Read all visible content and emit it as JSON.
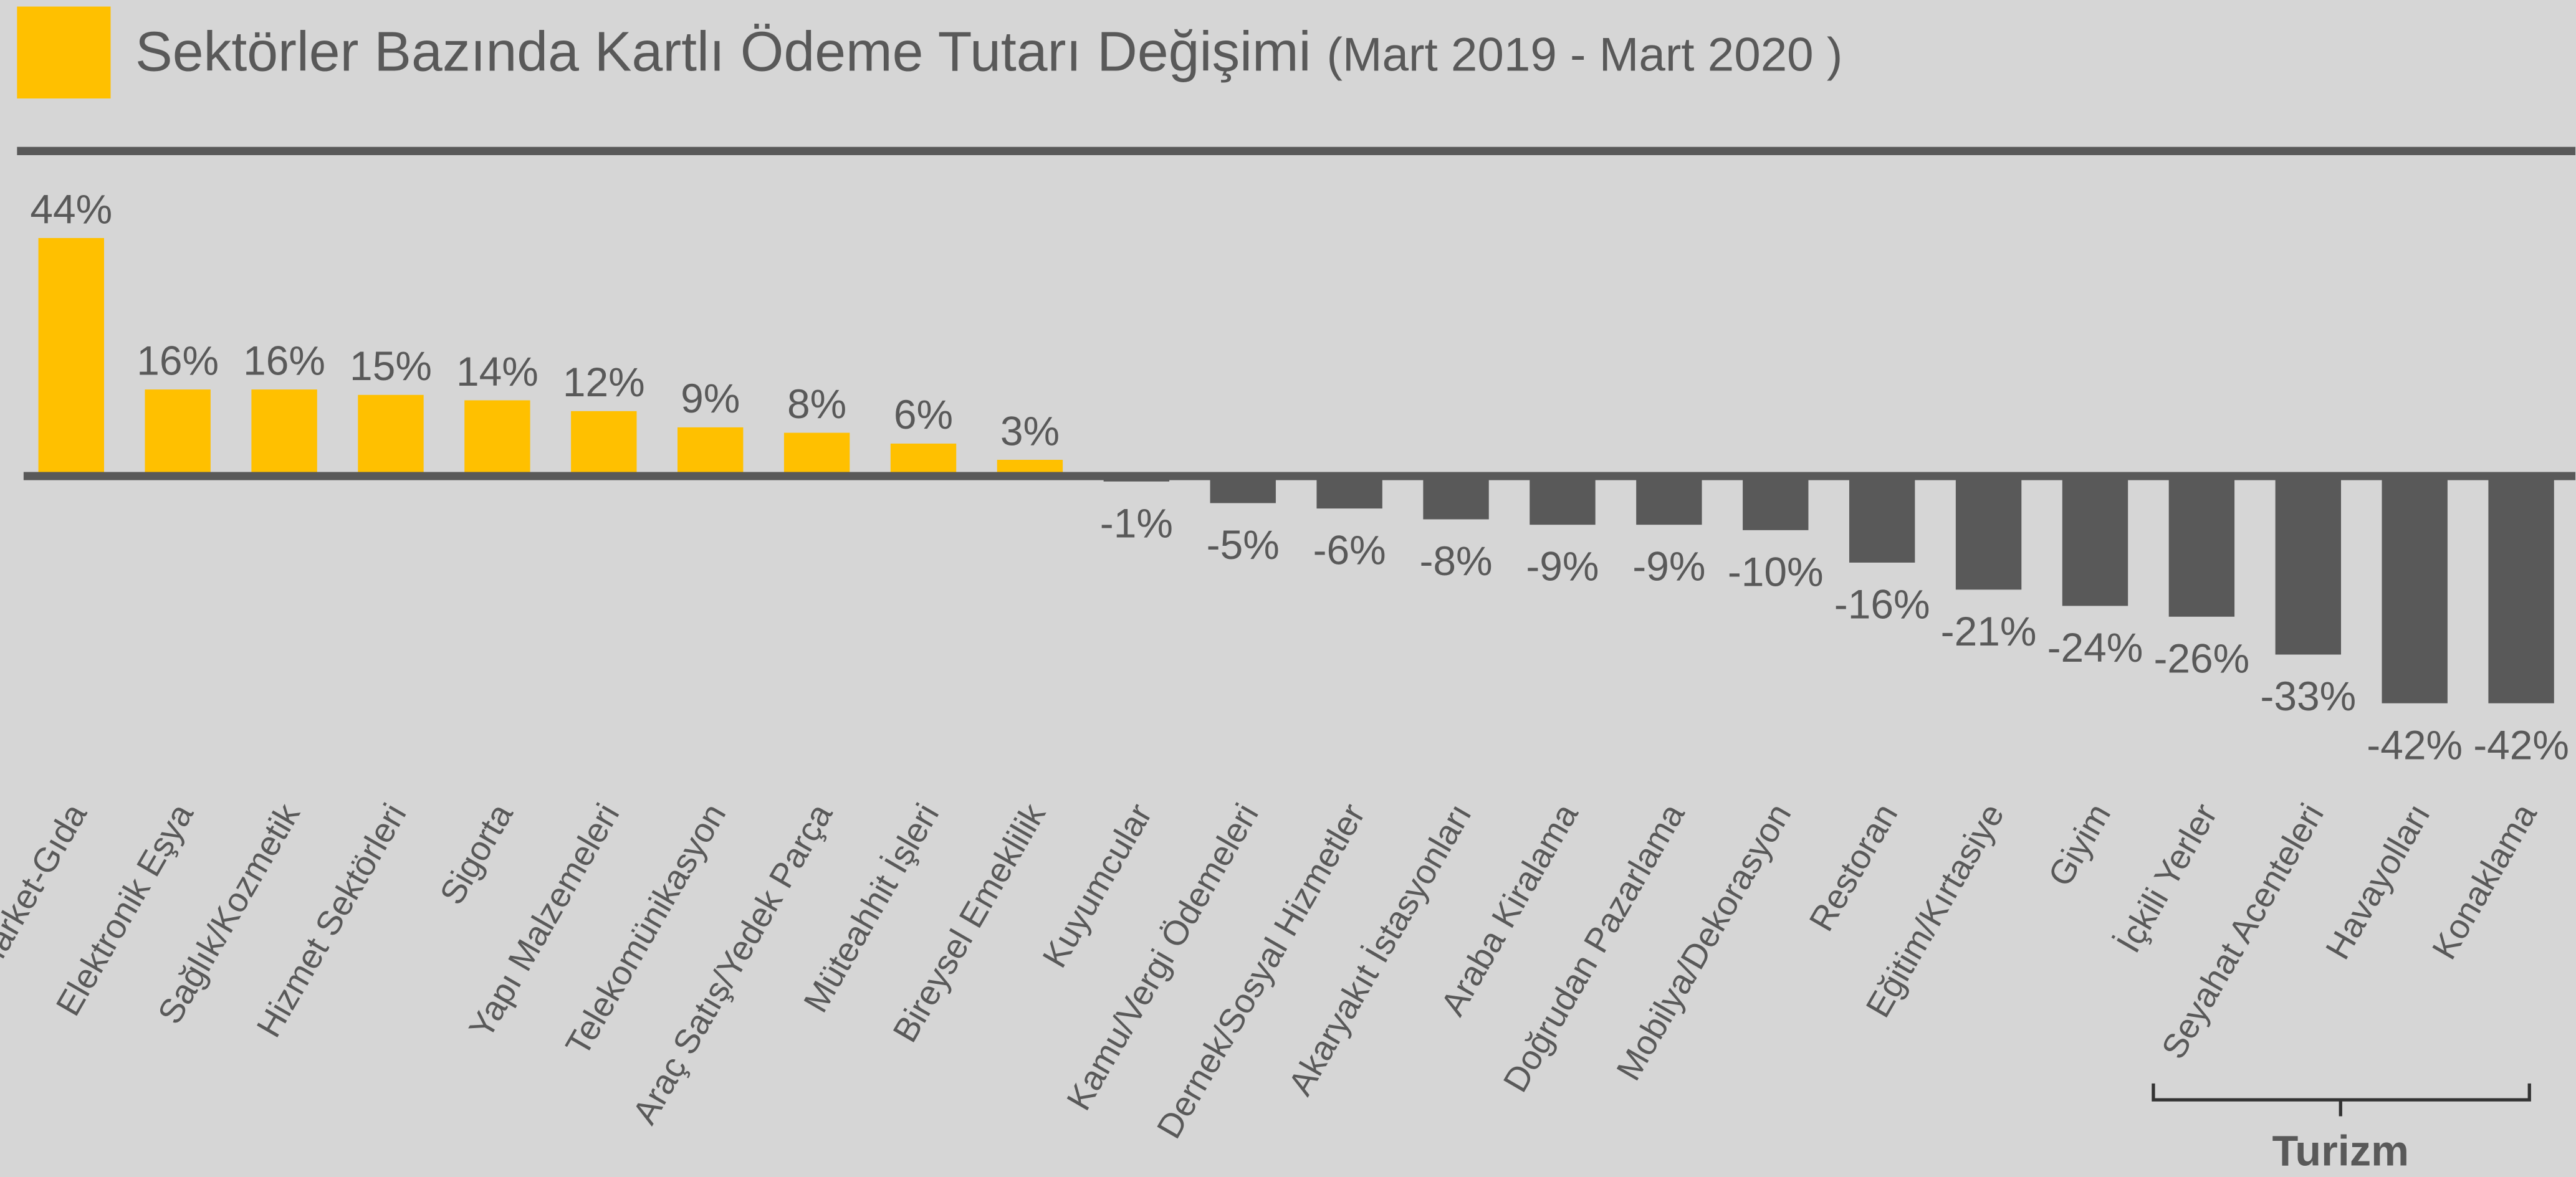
{
  "chart_data": {
    "type": "bar",
    "title": "Sektörler Bazında Kartlı Ödeme Tutarı Değişimi",
    "subtitle": "(Mart 2019 - Mart 2020 )",
    "categories": [
      "Market-Gıda",
      "Elektronik Eşya",
      "Sağlık/Kozmetik",
      "Hizmet Sektörleri",
      "Sigorta",
      "Yapı Malzemeleri",
      "Telekomünikasyon",
      "Araç Satış/Yedek Parça",
      "Müteahhit İşleri",
      "Bireysel Emeklilik",
      "Kuyumcular",
      "Kamu/Vergi Ödemeleri",
      "Dernek/Sosyal Hizmetler",
      "Akaryakıt İstasyonları",
      "Araba Kiralama",
      "Doğrudan Pazarlama",
      "Mobilya/Dekorasyon",
      "Restoran",
      "Eğitim/Kırtasiye",
      "Giyim",
      "İçkili Yerler",
      "Seyahat Acenteleri",
      "Havayolları",
      "Konaklama"
    ],
    "values": [
      44,
      16,
      16,
      15,
      14,
      12,
      9,
      8,
      6,
      3,
      -1,
      -5,
      -6,
      -8,
      -9,
      -9,
      -10,
      -16,
      -21,
      -24,
      -26,
      -33,
      -42,
      -42
    ],
    "value_labels": [
      "44%",
      "16%",
      "16%",
      "15%",
      "14%",
      "12%",
      "9%",
      "8%",
      "6%",
      "3%",
      "-1%",
      "-5%",
      "-6%",
      "-8%",
      "-9%",
      "-9%",
      "-10%",
      "-16%",
      "-21%",
      "-24%",
      "-26%",
      "-33%",
      "-42%",
      "-42%"
    ],
    "positive_color": "#FFC000",
    "negative_color": "#595959",
    "annotation": "Turizm"
  }
}
